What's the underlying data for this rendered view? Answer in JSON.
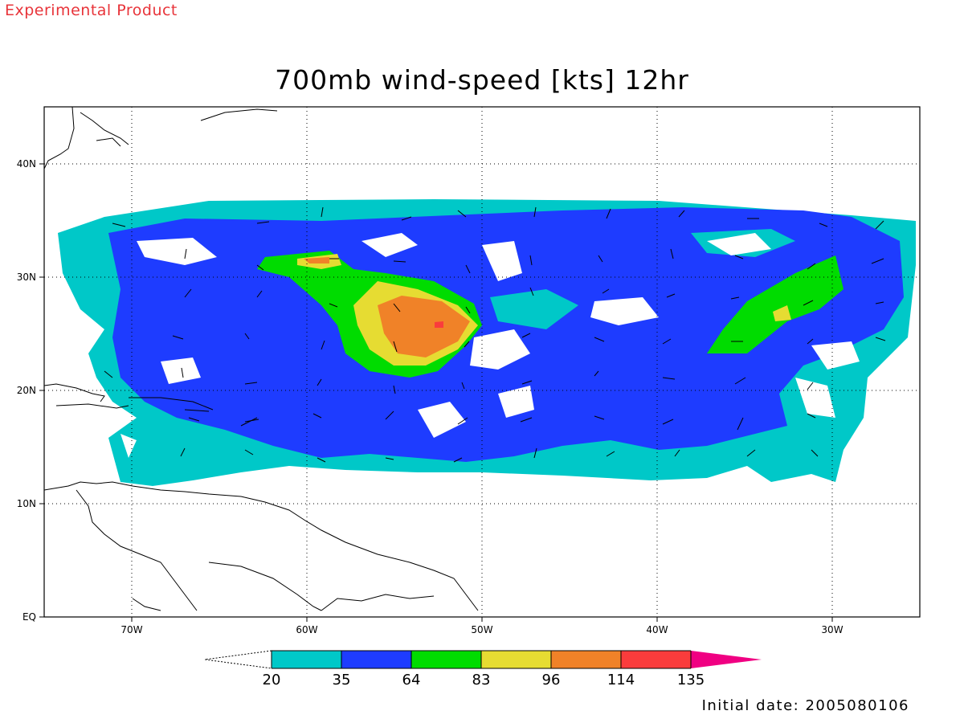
{
  "header": {
    "tag": "Experimental Product",
    "title": "700mb wind-speed [kts] 12hr"
  },
  "footer": {
    "initial_date": "Initial date: 2005080106"
  },
  "axes": {
    "lon_ticks": [
      "70W",
      "60W",
      "50W",
      "40W",
      "30W"
    ],
    "lat_ticks": [
      "EQ",
      "10N",
      "20N",
      "30N",
      "40N"
    ],
    "lon_range": [
      -75,
      -25
    ],
    "lat_range": [
      0,
      45
    ]
  },
  "colorbar": {
    "labels": [
      "20",
      "35",
      "64",
      "83",
      "96",
      "114",
      "135"
    ],
    "colors": [
      "#00c8c8",
      "#1e3cff",
      "#00dc00",
      "#e6dc32",
      "#f08228",
      "#fa3c3c",
      "#f00082"
    ]
  }
}
